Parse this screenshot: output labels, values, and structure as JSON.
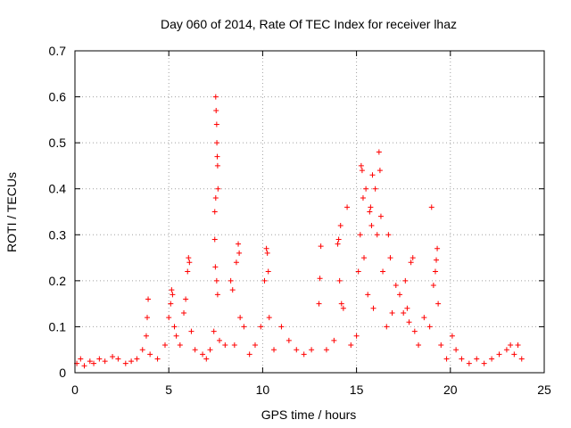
{
  "chart_data": {
    "type": "scatter",
    "title": "Day 060 of 2014, Rate Of TEC Index for receiver lhaz",
    "xlabel": "GPS time / hours",
    "ylabel": "ROTI / TECUs",
    "xlim": [
      0,
      25
    ],
    "ylim": [
      0,
      0.7
    ],
    "xticks": [
      "0",
      "5",
      "10",
      "15",
      "20",
      "25"
    ],
    "yticks": [
      "0",
      "0.1",
      "0.2",
      "0.3",
      "0.4",
      "0.5",
      "0.6",
      "0.7"
    ],
    "grid": true,
    "marker": "+",
    "color": "#ff0000",
    "series": [
      {
        "name": "ROTI",
        "points": [
          [
            0.1,
            0.02
          ],
          [
            0.3,
            0.03
          ],
          [
            0.5,
            0.015
          ],
          [
            0.8,
            0.025
          ],
          [
            1.0,
            0.02
          ],
          [
            1.3,
            0.03
          ],
          [
            1.6,
            0.025
          ],
          [
            2.0,
            0.035
          ],
          [
            2.3,
            0.03
          ],
          [
            2.7,
            0.02
          ],
          [
            3.0,
            0.025
          ],
          [
            3.3,
            0.03
          ],
          [
            3.6,
            0.05
          ],
          [
            3.8,
            0.08
          ],
          [
            3.9,
            0.16
          ],
          [
            3.85,
            0.12
          ],
          [
            4.0,
            0.04
          ],
          [
            4.4,
            0.03
          ],
          [
            4.8,
            0.06
          ],
          [
            5.0,
            0.12
          ],
          [
            5.1,
            0.15
          ],
          [
            5.15,
            0.18
          ],
          [
            5.2,
            0.17
          ],
          [
            5.3,
            0.1
          ],
          [
            5.4,
            0.08
          ],
          [
            5.6,
            0.06
          ],
          [
            5.8,
            0.13
          ],
          [
            5.9,
            0.16
          ],
          [
            6.0,
            0.22
          ],
          [
            6.05,
            0.25
          ],
          [
            6.1,
            0.24
          ],
          [
            6.2,
            0.09
          ],
          [
            6.4,
            0.05
          ],
          [
            6.8,
            0.04
          ],
          [
            7.0,
            0.03
          ],
          [
            7.2,
            0.05
          ],
          [
            7.4,
            0.09
          ],
          [
            7.45,
            0.29
          ],
          [
            7.5,
            0.6
          ],
          [
            7.52,
            0.57
          ],
          [
            7.55,
            0.54
          ],
          [
            7.56,
            0.5
          ],
          [
            7.58,
            0.47
          ],
          [
            7.6,
            0.45
          ],
          [
            7.62,
            0.4
          ],
          [
            7.5,
            0.38
          ],
          [
            7.45,
            0.35
          ],
          [
            7.48,
            0.23
          ],
          [
            7.55,
            0.2
          ],
          [
            7.6,
            0.17
          ],
          [
            7.7,
            0.07
          ],
          [
            8.0,
            0.06
          ],
          [
            8.3,
            0.2
          ],
          [
            8.4,
            0.18
          ],
          [
            8.5,
            0.06
          ],
          [
            8.6,
            0.24
          ],
          [
            8.7,
            0.28
          ],
          [
            8.75,
            0.26
          ],
          [
            8.8,
            0.12
          ],
          [
            9.0,
            0.1
          ],
          [
            9.3,
            0.04
          ],
          [
            9.6,
            0.06
          ],
          [
            9.9,
            0.1
          ],
          [
            10.1,
            0.2
          ],
          [
            10.2,
            0.27
          ],
          [
            10.25,
            0.26
          ],
          [
            10.3,
            0.22
          ],
          [
            10.35,
            0.12
          ],
          [
            10.6,
            0.05
          ],
          [
            11.0,
            0.1
          ],
          [
            11.4,
            0.07
          ],
          [
            11.8,
            0.05
          ],
          [
            12.2,
            0.04
          ],
          [
            12.6,
            0.05
          ],
          [
            13.0,
            0.15
          ],
          [
            13.05,
            0.205
          ],
          [
            13.1,
            0.275
          ],
          [
            13.4,
            0.05
          ],
          [
            13.8,
            0.07
          ],
          [
            14.0,
            0.28
          ],
          [
            14.05,
            0.29
          ],
          [
            14.1,
            0.2
          ],
          [
            14.15,
            0.32
          ],
          [
            14.2,
            0.15
          ],
          [
            14.3,
            0.14
          ],
          [
            14.5,
            0.36
          ],
          [
            14.7,
            0.06
          ],
          [
            15.0,
            0.08
          ],
          [
            15.1,
            0.22
          ],
          [
            15.2,
            0.3
          ],
          [
            15.25,
            0.45
          ],
          [
            15.3,
            0.44
          ],
          [
            15.35,
            0.38
          ],
          [
            15.4,
            0.25
          ],
          [
            15.5,
            0.4
          ],
          [
            15.6,
            0.17
          ],
          [
            15.7,
            0.35
          ],
          [
            15.75,
            0.36
          ],
          [
            15.8,
            0.32
          ],
          [
            15.85,
            0.43
          ],
          [
            15.9,
            0.14
          ],
          [
            16.0,
            0.4
          ],
          [
            16.1,
            0.3
          ],
          [
            16.2,
            0.48
          ],
          [
            16.25,
            0.44
          ],
          [
            16.3,
            0.34
          ],
          [
            16.4,
            0.22
          ],
          [
            16.6,
            0.1
          ],
          [
            16.7,
            0.3
          ],
          [
            16.8,
            0.25
          ],
          [
            16.9,
            0.13
          ],
          [
            17.1,
            0.19
          ],
          [
            17.3,
            0.17
          ],
          [
            17.5,
            0.13
          ],
          [
            17.6,
            0.2
          ],
          [
            17.7,
            0.14
          ],
          [
            17.8,
            0.11
          ],
          [
            17.9,
            0.24
          ],
          [
            18.0,
            0.25
          ],
          [
            18.1,
            0.09
          ],
          [
            18.3,
            0.06
          ],
          [
            18.6,
            0.12
          ],
          [
            18.9,
            0.1
          ],
          [
            19.0,
            0.36
          ],
          [
            19.1,
            0.19
          ],
          [
            19.2,
            0.22
          ],
          [
            19.25,
            0.245
          ],
          [
            19.3,
            0.27
          ],
          [
            19.35,
            0.15
          ],
          [
            19.5,
            0.06
          ],
          [
            19.8,
            0.03
          ],
          [
            20.1,
            0.08
          ],
          [
            20.3,
            0.05
          ],
          [
            20.6,
            0.03
          ],
          [
            21.0,
            0.02
          ],
          [
            21.4,
            0.03
          ],
          [
            21.8,
            0.02
          ],
          [
            22.2,
            0.03
          ],
          [
            22.6,
            0.04
          ],
          [
            23.0,
            0.05
          ],
          [
            23.2,
            0.06
          ],
          [
            23.4,
            0.04
          ],
          [
            23.6,
            0.06
          ],
          [
            23.8,
            0.03
          ]
        ]
      }
    ]
  }
}
